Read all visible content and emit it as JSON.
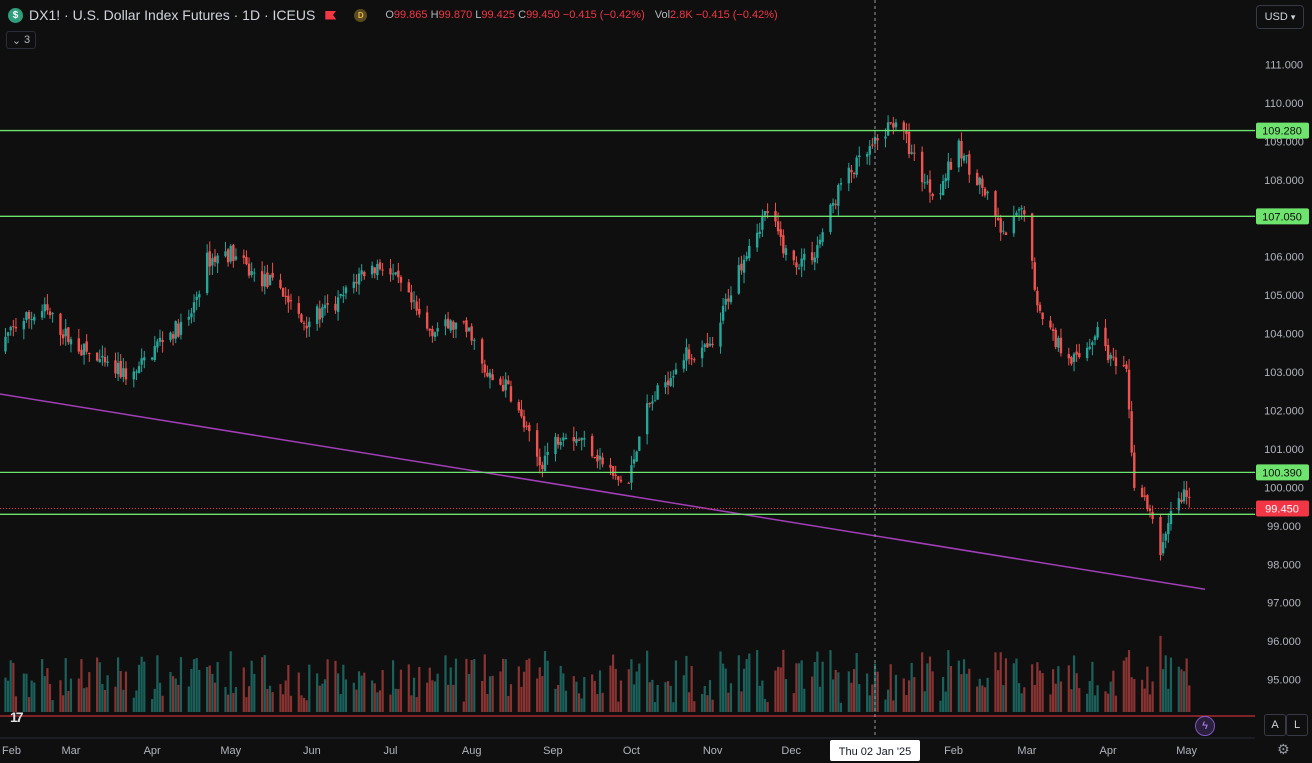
{
  "header": {
    "symbol_badge": "$",
    "title": "DX1! · U.S. Dollar Index Futures · 1D · ICEUS",
    "d_badge": "D",
    "ohlc": {
      "o_label": "O",
      "o": "99.865",
      "h_label": "H",
      "h": "99.870",
      "l_label": "L",
      "l": "99.425",
      "c_label": "C",
      "c": "99.450",
      "change": "−0.415 (−0.42%)"
    },
    "vol": {
      "label": "Vol",
      "value": "2.8K",
      "change": "−0.415 (−0.42%)"
    },
    "collapse_count": "3"
  },
  "toolbar": {
    "currency": "USD",
    "auto_label": "A",
    "log_label": "L"
  },
  "logo_text": "17",
  "crosshair": {
    "date_label": "Thu 02 Jan '25"
  },
  "colors": {
    "up": "#26a69a",
    "down": "#ef5350",
    "hline": "#6ee36e",
    "trendline": "#a23fb8",
    "current_price": "#f23645",
    "background": "#0f0f0f",
    "axis_text": "#b2b5be"
  },
  "chart_data": {
    "type": "candlestick",
    "symbol": "DX1!",
    "name": "U.S. Dollar Index Futures",
    "interval": "1D",
    "exchange": "ICEUS",
    "ylim": [
      94.6,
      111.35
    ],
    "y_ticks": [
      "111.000",
      "110.000",
      "109.000",
      "108.000",
      "107.000",
      "106.000",
      "105.000",
      "104.000",
      "103.000",
      "102.000",
      "101.000",
      "100.000",
      "99.000",
      "98.000",
      "97.000",
      "96.000",
      "95.000"
    ],
    "x_ticks": [
      "Feb",
      "Mar",
      "Apr",
      "May",
      "Jun",
      "Jul",
      "Aug",
      "Sep",
      "Oct",
      "Nov",
      "Dec",
      "Feb",
      "Mar",
      "Apr",
      "May"
    ],
    "x_range": [
      "2024-02-01",
      "2025-05-08"
    ],
    "grid": false,
    "current_price": 99.45,
    "horizontal_lines": [
      {
        "value": 109.28,
        "label": "109.280"
      },
      {
        "value": 107.05,
        "label": "107.050"
      },
      {
        "value": 100.39,
        "label": "100.390"
      },
      {
        "value": 99.3,
        "label": ""
      }
    ],
    "trendline": {
      "start": {
        "date": "2024-02-01",
        "value": 102.45
      },
      "end": {
        "date": "2025-05-08",
        "value": 97.35
      }
    },
    "crosshair_date": "2025-01-02",
    "price_path": [
      [
        "2024-02-01",
        103.5
      ],
      [
        "2024-02-10",
        104.3
      ],
      [
        "2024-02-20",
        104.6
      ],
      [
        "2024-03-01",
        103.8
      ],
      [
        "2024-03-15",
        103.1
      ],
      [
        "2024-03-25",
        102.9
      ],
      [
        "2024-04-05",
        103.9
      ],
      [
        "2024-04-15",
        104.3
      ],
      [
        "2024-04-22",
        105.9
      ],
      [
        "2024-05-01",
        106.1
      ],
      [
        "2024-05-10",
        105.5
      ],
      [
        "2024-05-20",
        105.2
      ],
      [
        "2024-05-28",
        104.3
      ],
      [
        "2024-06-10",
        104.7
      ],
      [
        "2024-06-20",
        105.6
      ],
      [
        "2024-06-28",
        105.8
      ],
      [
        "2024-07-05",
        105.2
      ],
      [
        "2024-07-15",
        104.1
      ],
      [
        "2024-07-25",
        104.2
      ],
      [
        "2024-08-01",
        104.0
      ],
      [
        "2024-08-06",
        102.9
      ],
      [
        "2024-08-15",
        102.6
      ],
      [
        "2024-08-27",
        100.6
      ],
      [
        "2024-09-05",
        101.5
      ],
      [
        "2024-09-15",
        101.1
      ],
      [
        "2024-09-25",
        100.2
      ],
      [
        "2024-09-30",
        100.1
      ],
      [
        "2024-10-05",
        101.8
      ],
      [
        "2024-10-20",
        103.4
      ],
      [
        "2024-11-01",
        103.6
      ],
      [
        "2024-11-06",
        104.8
      ],
      [
        "2024-11-15",
        106.4
      ],
      [
        "2024-11-22",
        107.2
      ],
      [
        "2024-12-01",
        105.8
      ],
      [
        "2024-12-10",
        106.1
      ],
      [
        "2024-12-20",
        107.9
      ],
      [
        "2025-01-02",
        108.9
      ],
      [
        "2025-01-10",
        109.6
      ],
      [
        "2025-01-20",
        108.1
      ],
      [
        "2025-01-25",
        107.6
      ],
      [
        "2025-02-03",
        108.8
      ],
      [
        "2025-02-12",
        107.8
      ],
      [
        "2025-02-20",
        106.5
      ],
      [
        "2025-03-01",
        107.4
      ],
      [
        "2025-03-04",
        105.0
      ],
      [
        "2025-03-12",
        103.8
      ],
      [
        "2025-03-20",
        103.3
      ],
      [
        "2025-03-28",
        104.1
      ],
      [
        "2025-04-03",
        103.2
      ],
      [
        "2025-04-08",
        102.9
      ],
      [
        "2025-04-11",
        100.1
      ],
      [
        "2025-04-16",
        99.5
      ],
      [
        "2025-04-21",
        98.3
      ],
      [
        "2025-04-25",
        99.4
      ],
      [
        "2025-05-01",
        99.9
      ],
      [
        "2025-05-03",
        99.45
      ]
    ]
  }
}
